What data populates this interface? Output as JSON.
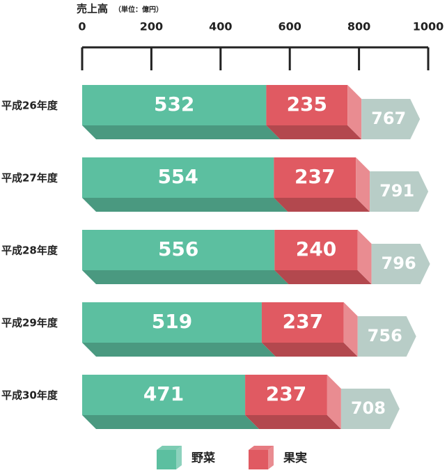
{
  "chart_data": {
    "type": "stacked-bar-horizontal",
    "title": "売上高",
    "subtitle": "（単位：億円）",
    "categories": [
      "平成26年度",
      "平成27年度",
      "平成28年度",
      "平成29年度",
      "平成30年度"
    ],
    "series": [
      {
        "name": "野菜",
        "color": "#5cbfa0",
        "values": [
          532,
          554,
          556,
          519,
          471
        ]
      },
      {
        "name": "果実",
        "color": "#e05a62",
        "values": [
          235,
          237,
          240,
          237,
          237
        ]
      }
    ],
    "totals": [
      767,
      791,
      796,
      756,
      708
    ],
    "total_color": "#b8cdc7",
    "xlim": [
      0,
      1000
    ],
    "xticks": [
      0,
      200,
      400,
      600,
      800,
      1000
    ]
  }
}
